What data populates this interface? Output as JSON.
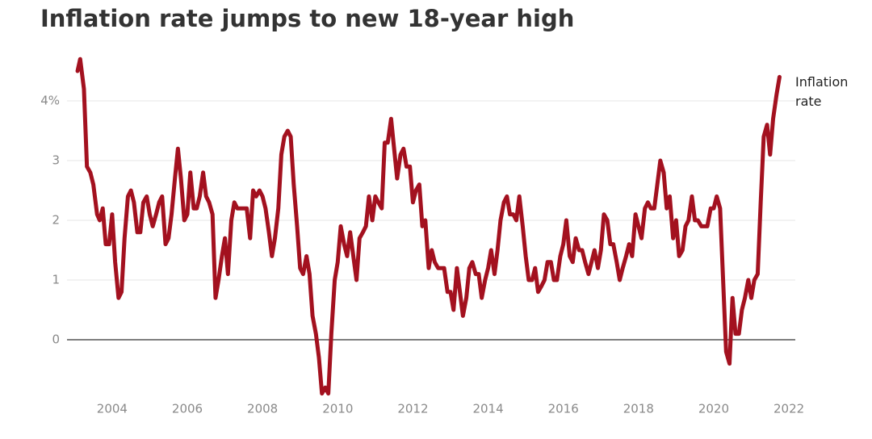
{
  "chart_data": {
    "type": "line",
    "title": "Inflation rate jumps to new 18-year high",
    "xlim": [
      2002.8,
      2022.17
    ],
    "xticks": [
      2004,
      2006,
      2008,
      2010,
      2012,
      2014,
      2016,
      2018,
      2020,
      2022
    ],
    "ylim": [
      -1,
      4.9
    ],
    "yticks": [
      0,
      1,
      2,
      3,
      {
        "value": 4,
        "label": "4%"
      }
    ],
    "grid": true,
    "x": [
      2003.08,
      2003.15,
      2003.25,
      2003.33,
      2003.42,
      2003.5,
      2003.6,
      2003.67,
      2003.75,
      2003.83,
      2003.92,
      2004.0,
      2004.08,
      2004.17,
      2004.25,
      2004.33,
      2004.42,
      2004.5,
      2004.58,
      2004.67,
      2004.75,
      2004.83,
      2004.92,
      2005.0,
      2005.08,
      2005.17,
      2005.25,
      2005.33,
      2005.42,
      2005.5,
      2005.58,
      2005.67,
      2005.75,
      2005.83,
      2005.92,
      2006.0,
      2006.08,
      2006.17,
      2006.25,
      2006.33,
      2006.42,
      2006.5,
      2006.58,
      2006.67,
      2006.75,
      2006.83,
      2006.92,
      2007.0,
      2007.08,
      2007.17,
      2007.25,
      2007.33,
      2007.42,
      2007.5,
      2007.58,
      2007.67,
      2007.75,
      2007.83,
      2007.92,
      2008.0,
      2008.08,
      2008.17,
      2008.25,
      2008.33,
      2008.42,
      2008.5,
      2008.58,
      2008.67,
      2008.75,
      2008.83,
      2008.92,
      2009.0,
      2009.08,
      2009.17,
      2009.25,
      2009.33,
      2009.42,
      2009.5,
      2009.58,
      2009.67,
      2009.75,
      2009.83,
      2009.92,
      2010.0,
      2010.08,
      2010.17,
      2010.25,
      2010.33,
      2010.5,
      2010.58,
      2010.67,
      2010.75,
      2010.83,
      2010.92,
      2011.0,
      2011.08,
      2011.17,
      2011.25,
      2011.33,
      2011.42,
      2011.5,
      2011.58,
      2011.67,
      2011.75,
      2011.83,
      2011.92,
      2012.0,
      2012.08,
      2012.17,
      2012.25,
      2012.33,
      2012.42,
      2012.5,
      2012.58,
      2012.67,
      2012.75,
      2012.83,
      2012.92,
      2013.0,
      2013.08,
      2013.17,
      2013.33,
      2013.42,
      2013.5,
      2013.58,
      2013.67,
      2013.75,
      2013.83,
      2013.92,
      2014.0,
      2014.08,
      2014.17,
      2014.25,
      2014.33,
      2014.42,
      2014.5,
      2014.58,
      2014.67,
      2014.75,
      2014.83,
      2014.92,
      2015.0,
      2015.08,
      2015.17,
      2015.25,
      2015.33,
      2015.42,
      2015.5,
      2015.58,
      2015.67,
      2015.75,
      2015.83,
      2015.92,
      2016.0,
      2016.08,
      2016.17,
      2016.25,
      2016.33,
      2016.42,
      2016.5,
      2016.58,
      2016.67,
      2016.75,
      2016.83,
      2016.92,
      2017.0,
      2017.08,
      2017.17,
      2017.25,
      2017.33,
      2017.42,
      2017.5,
      2017.58,
      2017.67,
      2017.75,
      2017.83,
      2017.92,
      2018.0,
      2018.08,
      2018.17,
      2018.25,
      2018.33,
      2018.42,
      2018.5,
      2018.58,
      2018.67,
      2018.75,
      2018.83,
      2018.92,
      2019.0,
      2019.08,
      2019.17,
      2019.25,
      2019.33,
      2019.42,
      2019.5,
      2019.58,
      2019.67,
      2019.75,
      2019.83,
      2019.92,
      2020.0,
      2020.08,
      2020.17,
      2020.25,
      2020.33,
      2020.42,
      2020.5,
      2020.58,
      2020.67,
      2020.75,
      2020.83,
      2020.92,
      2021.0,
      2021.08,
      2021.17,
      2021.25,
      2021.33,
      2021.42,
      2021.5,
      2021.58,
      2021.67,
      2021.75
    ],
    "series": [
      {
        "name": "Inflation rate",
        "color": "#a3111f",
        "values": [
          4.5,
          4.7,
          4.2,
          2.9,
          2.8,
          2.6,
          2.1,
          2.0,
          2.2,
          1.6,
          1.6,
          2.1,
          1.3,
          0.7,
          0.8,
          1.7,
          2.4,
          2.5,
          2.3,
          1.8,
          1.8,
          2.3,
          2.4,
          2.1,
          1.9,
          2.1,
          2.3,
          2.4,
          1.6,
          1.7,
          2.1,
          2.7,
          3.2,
          2.7,
          2.0,
          2.1,
          2.8,
          2.2,
          2.2,
          2.4,
          2.8,
          2.4,
          2.3,
          2.1,
          0.7,
          1.0,
          1.4,
          1.7,
          1.1,
          2.0,
          2.3,
          2.2,
          2.2,
          2.2,
          2.2,
          1.7,
          2.5,
          2.4,
          2.5,
          2.4,
          2.2,
          1.8,
          1.4,
          1.7,
          2.2,
          3.1,
          3.4,
          3.5,
          3.4,
          2.6,
          1.9,
          1.2,
          1.1,
          1.4,
          1.1,
          0.4,
          0.1,
          -0.3,
          -0.9,
          -0.8,
          -0.9,
          0.1,
          1.0,
          1.3,
          1.9,
          1.6,
          1.4,
          1.8,
          1.0,
          1.7,
          1.8,
          1.9,
          2.4,
          2.0,
          2.4,
          2.3,
          2.2,
          3.3,
          3.3,
          3.7,
          3.2,
          2.7,
          3.1,
          3.2,
          2.9,
          2.9,
          2.3,
          2.5,
          2.6,
          1.9,
          2.0,
          1.2,
          1.5,
          1.3,
          1.2,
          1.2,
          1.2,
          0.8,
          0.8,
          0.5,
          1.2,
          0.4,
          0.7,
          1.2,
          1.3,
          1.1,
          1.1,
          0.7,
          1.0,
          1.2,
          1.5,
          1.1,
          1.5,
          2.0,
          2.3,
          2.4,
          2.1,
          2.1,
          2.0,
          2.4,
          1.9,
          1.4,
          1.0,
          1.0,
          1.2,
          0.8,
          0.9,
          1.0,
          1.3,
          1.3,
          1.0,
          1.0,
          1.4,
          1.6,
          2.0,
          1.4,
          1.3,
          1.7,
          1.5,
          1.5,
          1.3,
          1.1,
          1.3,
          1.5,
          1.2,
          1.5,
          2.1,
          2.0,
          1.6,
          1.6,
          1.3,
          1.0,
          1.2,
          1.4,
          1.6,
          1.4,
          2.1,
          1.9,
          1.7,
          2.2,
          2.3,
          2.2,
          2.2,
          2.6,
          3.0,
          2.8,
          2.2,
          2.4,
          1.7,
          2.0,
          1.4,
          1.5,
          1.9,
          2.0,
          2.4,
          2.0,
          2.0,
          1.9,
          1.9,
          1.9,
          2.2,
          2.2,
          2.4,
          2.2,
          1.0,
          -0.2,
          -0.4,
          0.7,
          0.1,
          0.1,
          0.5,
          0.7,
          1.0,
          0.7,
          1.0,
          1.1,
          2.3,
          3.4,
          3.6,
          3.1,
          3.7,
          4.1,
          4.4
        ]
      }
    ]
  }
}
